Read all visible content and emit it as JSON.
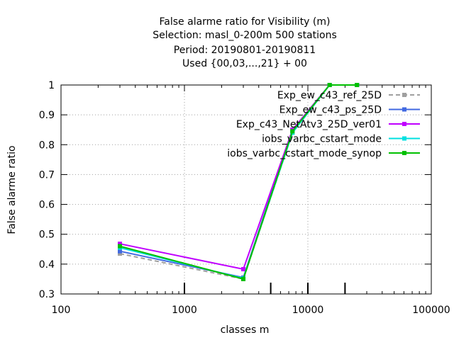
{
  "chart_data": {
    "type": "line",
    "title_lines": [
      "False alarme ratio  for Visibility (m)",
      "Selection: masl_0-200m    500 stations",
      "Period: 20190801-20190811",
      "Used {00,03,...,21} + 00"
    ],
    "xlabel": "classes m",
    "ylabel": "False alarme ratio",
    "xscale": "log",
    "xlim": [
      100,
      100000
    ],
    "ylim": [
      0.3,
      1.0
    ],
    "xticks": [
      100,
      1000,
      10000,
      100000
    ],
    "xtick_labels": [
      "100",
      "1000",
      "10000",
      "100000"
    ],
    "yticks": [
      0.3,
      0.4,
      0.5,
      0.6,
      0.7,
      0.8,
      0.9,
      1.0
    ],
    "ytick_labels": [
      "0.3",
      "0.4",
      "0.5",
      "0.6",
      "0.7",
      "0.8",
      "0.9",
      "1"
    ],
    "grid": true,
    "legend_position": "top-right",
    "series": [
      {
        "name": "Exp_ew_c43_ref_25D",
        "color": "#a0a0a0",
        "dash": "dashed",
        "x": [
          300,
          3000,
          7500,
          15000,
          25000
        ],
        "y": [
          0.435,
          0.35,
          0.84,
          1.0,
          1.0
        ]
      },
      {
        "name": "Exp_ew_c43_ps_25D",
        "color": "#4169e1",
        "dash": "solid",
        "x": [
          300,
          3000,
          7500,
          15000,
          25000
        ],
        "y": [
          0.443,
          0.355,
          0.85,
          1.0,
          1.0
        ]
      },
      {
        "name": "Exp_c43_NetAtv3_25D_ver01",
        "color": "#c000ff",
        "dash": "solid",
        "x": [
          300,
          3000,
          7500,
          15000,
          25000
        ],
        "y": [
          0.468,
          0.383,
          0.85,
          1.0,
          1.0
        ]
      },
      {
        "name": "iobs_varbc_cstart_mode",
        "color": "#00e0e0",
        "dash": "solid",
        "x": [
          300,
          3000,
          7500,
          15000,
          25000
        ],
        "y": [
          0.455,
          0.352,
          0.84,
          1.0,
          1.0
        ]
      },
      {
        "name": "iobs_varbc_cstart_mode_synop",
        "color": "#00c000",
        "dash": "solid",
        "x": [
          300,
          3000,
          7500,
          15000,
          25000
        ],
        "y": [
          0.46,
          0.35,
          0.845,
          1.0,
          1.0
        ]
      }
    ],
    "marker_ticks_x": [
      1000,
      5000,
      10000,
      20000
    ]
  }
}
